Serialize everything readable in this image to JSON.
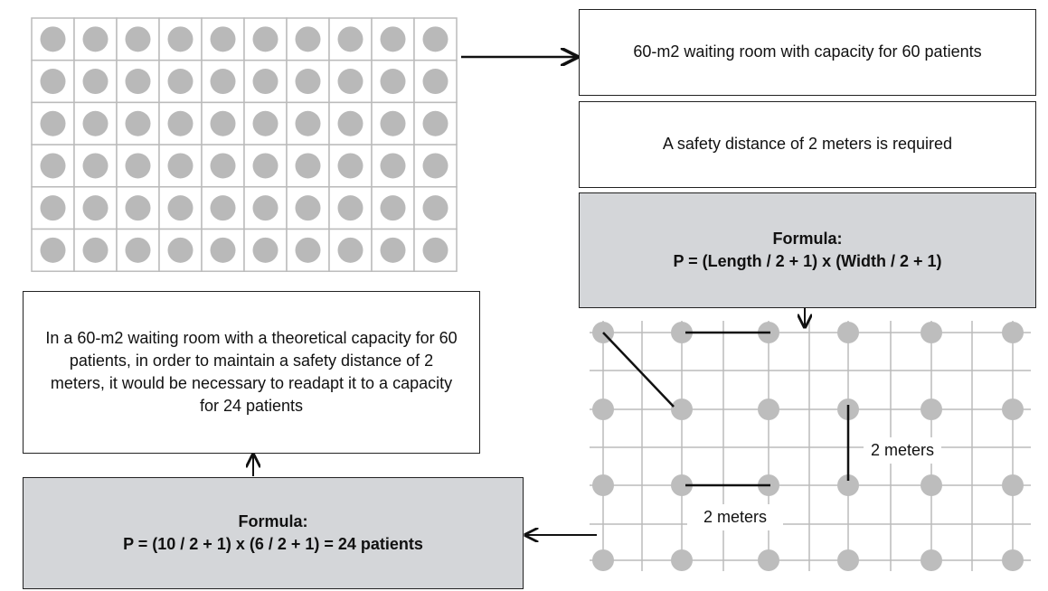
{
  "boxes": {
    "room": "60-m2 waiting room with capacity for 60 patients",
    "distance": "A safety distance of 2 meters is required",
    "formula_general": {
      "heading": "Formula:",
      "expression": "P = (Length / 2 + 1) x (Width / 2 + 1)"
    },
    "conclusion": "In a 60-m2 waiting room with a theoretical capacity for 60 patients, in order to maintain a safety distance of 2 meters, it would be necessary to readapt it to a capacity for 24 patients",
    "formula_applied": {
      "heading": "Formula:",
      "expression": "P = (10 / 2 + 1) x (6 / 2 + 1) = 24 patients"
    }
  },
  "distance_labels": [
    "2 meters",
    "2 meters"
  ]
}
